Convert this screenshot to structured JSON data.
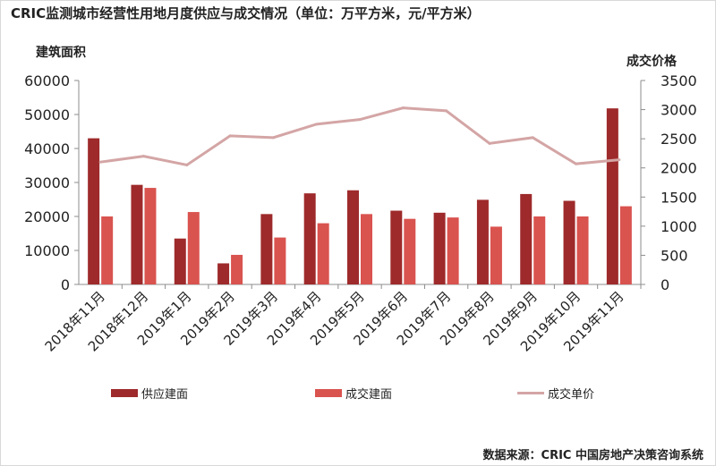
{
  "title": "CRIC监测城市经营性用地月度供应与成交情况（单位：万平方米，元/平方米）",
  "source": "数据来源：CRIC 中国房地产决策咨询系统",
  "colors": {
    "supply": "#9e2a2b",
    "deal": "#d9534f",
    "price": "#d4a5a5"
  },
  "chart_data": {
    "type": "bar",
    "title": "CRIC监测城市经营性用地月度供应与成交情况（单位：万平方米，元/平方米）",
    "ylabel": "建筑面积",
    "ylabel_right": "成交价格",
    "ylim": [
      0,
      60000
    ],
    "ylim_right": [
      0,
      3500
    ],
    "yticks": [
      "0",
      "10000",
      "20000",
      "30000",
      "40000",
      "50000",
      "60000"
    ],
    "yticks_right": [
      "0",
      "500",
      "1000",
      "1500",
      "2000",
      "2500",
      "3000",
      "3500"
    ],
    "categories": [
      "2018年11月",
      "2018年12月",
      "2019年1月",
      "2019年2月",
      "2019年3月",
      "2019年4月",
      "2019年5月",
      "2019年6月",
      "2019年7月",
      "2019年8月",
      "2019年9月",
      "2019年10月",
      "2019年11月"
    ],
    "series": [
      {
        "name": "供应建面",
        "type": "bar",
        "axis": "left",
        "values": [
          43000,
          29300,
          13500,
          6200,
          20700,
          26800,
          27700,
          21700,
          21100,
          24900,
          26600,
          24600,
          51800
        ]
      },
      {
        "name": "成交建面",
        "type": "bar",
        "axis": "left",
        "values": [
          20000,
          28400,
          21300,
          8700,
          13800,
          18000,
          20700,
          19300,
          19700,
          17000,
          20000,
          20000,
          23000
        ]
      },
      {
        "name": "成交单价",
        "type": "line",
        "axis": "right",
        "values": [
          2100,
          2200,
          2050,
          2550,
          2520,
          2750,
          2830,
          3030,
          2980,
          2420,
          2520,
          2070,
          2140
        ]
      }
    ],
    "legend_position": "bottom",
    "grid": false
  }
}
